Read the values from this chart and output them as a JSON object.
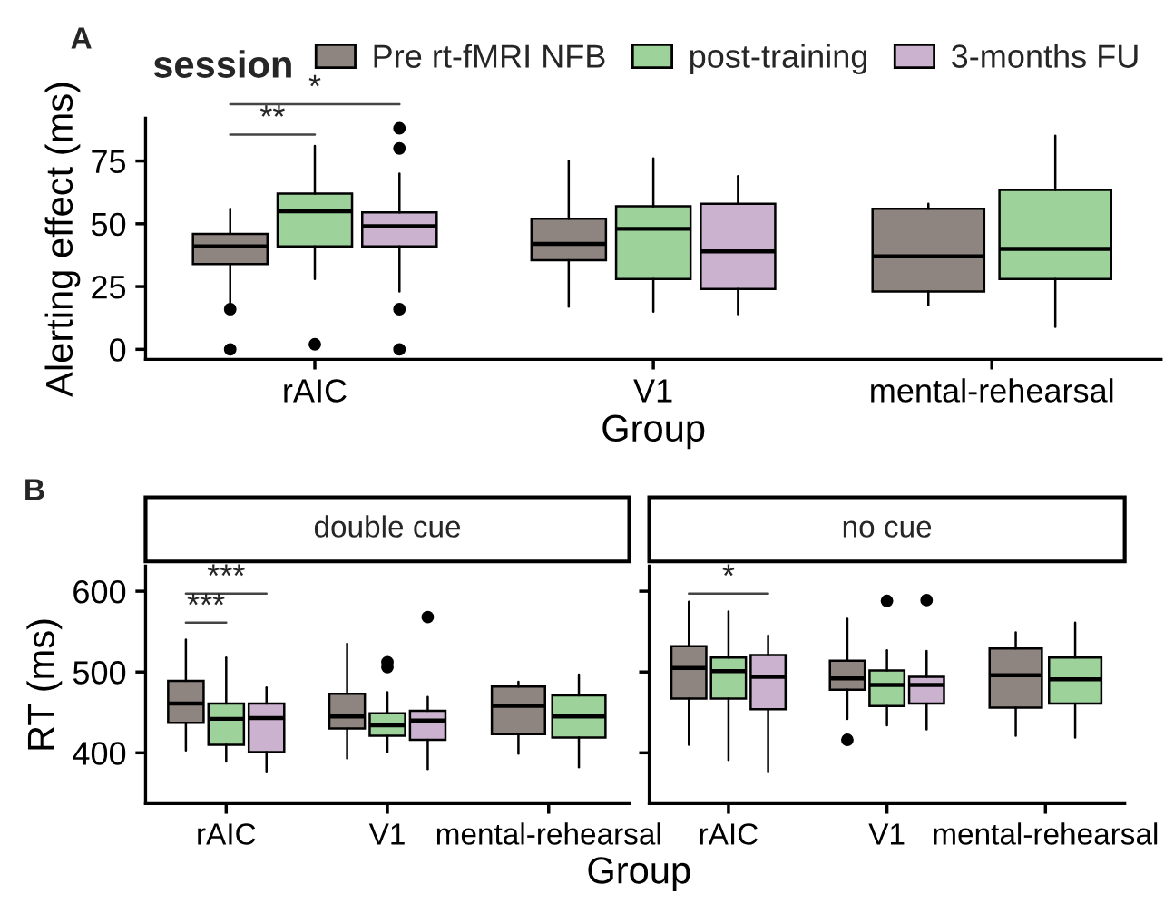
{
  "chart_data": [
    {
      "type": "box",
      "xlabel": "Group",
      "ylabel": "Alerting effect (ms)",
      "legend_title": "session",
      "legend": "top",
      "grid": false,
      "categories": [
        "rAIC",
        "V1",
        "mental-rehearsal"
      ],
      "ylim": [
        -4,
        92
      ],
      "yticks": [
        0,
        25,
        50,
        75
      ],
      "annotations": [
        "A",
        "**",
        "*"
      ],
      "series": [
        {
          "name": "Pre rt-fMRI NFB",
          "color": "#8f8580",
          "boxes": [
            {
              "low": 18,
              "q1": 34,
              "median": 41,
              "q3": 46,
              "high": 56,
              "outliers": [
                16,
                0
              ]
            },
            {
              "low": 17,
              "q1": 35.5,
              "median": 42,
              "q3": 52,
              "high": 75
            },
            {
              "low": 17.5,
              "q1": 23,
              "median": 37,
              "q3": 56,
              "high": 58
            }
          ]
        },
        {
          "name": "post-training",
          "color": "#9dd39b",
          "boxes": [
            {
              "low": 28,
              "q1": 41,
              "median": 55,
              "q3": 62,
              "high": 81,
              "outliers": [
                2
              ]
            },
            {
              "low": 15,
              "q1": 28,
              "median": 48,
              "q3": 57,
              "high": 76
            },
            {
              "low": 9,
              "q1": 28,
              "median": 40,
              "q3": 63.5,
              "high": 85
            }
          ]
        },
        {
          "name": "3-months FU",
          "color": "#cbb3cf",
          "boxes": [
            {
              "low": 23,
              "q1": 41,
              "median": 49,
              "q3": 54.5,
              "high": 70,
              "outliers": [
                88,
                80,
                16,
                0
              ]
            },
            {
              "low": 14,
              "q1": 24,
              "median": 39,
              "q3": 58,
              "high": 69
            },
            null
          ]
        }
      ]
    },
    {
      "type": "box",
      "title": "double cue",
      "xlabel": "Group",
      "ylabel": "RT (ms)",
      "grid": false,
      "categories": [
        "rAIC",
        "V1",
        "mental-rehearsal"
      ],
      "ylim": [
        337,
        631
      ],
      "yticks": [
        400,
        500,
        600
      ],
      "annotations": [
        "B",
        "***",
        "***"
      ],
      "series": [
        {
          "color": "#8f8580",
          "boxes": [
            {
              "low": 403,
              "q1": 437,
              "median": 461,
              "q3": 489,
              "high": 540
            },
            {
              "low": 393,
              "q1": 430,
              "median": 445,
              "q3": 473,
              "high": 535
            },
            {
              "low": 399,
              "q1": 423,
              "median": 458,
              "q3": 482,
              "high": 488
            }
          ]
        },
        {
          "color": "#9dd39b",
          "boxes": [
            {
              "low": 389,
              "q1": 410,
              "median": 442,
              "q3": 461,
              "high": 518
            },
            {
              "low": 401,
              "q1": 421,
              "median": 434,
              "q3": 449,
              "high": 475,
              "outliers": [
                506,
                512
              ]
            },
            {
              "low": 382,
              "q1": 419,
              "median": 445,
              "q3": 471,
              "high": 497
            }
          ]
        },
        {
          "color": "#cbb3cf",
          "boxes": [
            {
              "low": 376,
              "q1": 401,
              "median": 443,
              "q3": 461,
              "high": 481
            },
            {
              "low": 380,
              "q1": 416,
              "median": 440,
              "q3": 452,
              "high": 469,
              "outliers": [
                568
              ]
            },
            null
          ]
        }
      ]
    },
    {
      "type": "box",
      "title": "no cue",
      "grid": false,
      "tick_labels": "x",
      "categories": [
        "rAIC",
        "V1",
        "mental-rehearsal"
      ],
      "ylim": [
        337,
        631
      ],
      "yticks": [
        400,
        500,
        600
      ],
      "annotations": [
        "*"
      ],
      "series": [
        {
          "color": "#8f8580",
          "boxes": [
            {
              "low": 410,
              "q1": 467,
              "median": 505,
              "q3": 532,
              "high": 587
            },
            {
              "low": 442,
              "q1": 478,
              "median": 492,
              "q3": 514,
              "high": 566,
              "outliers": [
                416
              ]
            },
            {
              "low": 421,
              "q1": 456,
              "median": 496,
              "q3": 529,
              "high": 549
            }
          ]
        },
        {
          "color": "#9dd39b",
          "boxes": [
            {
              "low": 391,
              "q1": 467,
              "median": 501,
              "q3": 518,
              "high": 575
            },
            {
              "low": 434,
              "q1": 458,
              "median": 484,
              "q3": 502,
              "high": 527,
              "outliers": [
                588
              ]
            },
            {
              "low": 419,
              "q1": 461,
              "median": 491,
              "q3": 518,
              "high": 561
            }
          ]
        },
        {
          "color": "#cbb3cf",
          "boxes": [
            {
              "low": 376,
              "q1": 454,
              "median": 494,
              "q3": 521,
              "high": 545
            },
            {
              "low": 429,
              "q1": 461,
              "median": 484,
              "q3": 494,
              "high": 526,
              "outliers": [
                589
              ]
            },
            null
          ]
        }
      ]
    }
  ]
}
